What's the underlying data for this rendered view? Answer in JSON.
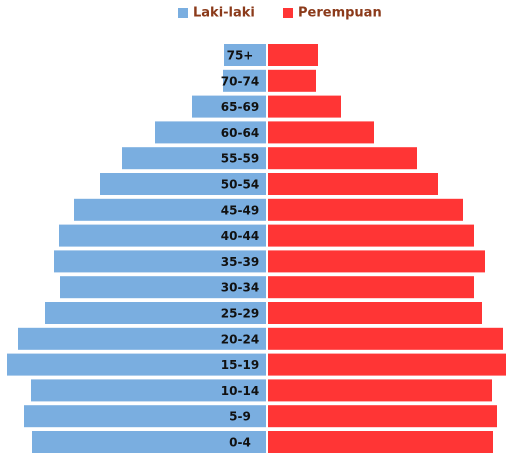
{
  "chart_data": {
    "type": "pyramid",
    "categories": [
      "75+",
      "70-74",
      "65-69",
      "60-64",
      "55-59",
      "50-54",
      "45-49",
      "40-44",
      "35-39",
      "30-34",
      "25-29",
      "20-24",
      "15-19",
      "10-14",
      "5-9",
      "0-4"
    ],
    "series": [
      {
        "name": "Laki-laki",
        "color": "#7aaee0",
        "values": [
          42,
          43,
          74,
          111,
          144,
          166,
          192,
          207,
          212,
          206,
          221,
          248,
          259,
          235,
          242,
          234
        ]
      },
      {
        "name": "Perempuan",
        "color": "#ff3535",
        "values": [
          50,
          48,
          73,
          106,
          149,
          170,
          195,
          206,
          217,
          206,
          214,
          235,
          238,
          224,
          229,
          225
        ]
      }
    ],
    "xlim": [
      0,
      260
    ]
  }
}
